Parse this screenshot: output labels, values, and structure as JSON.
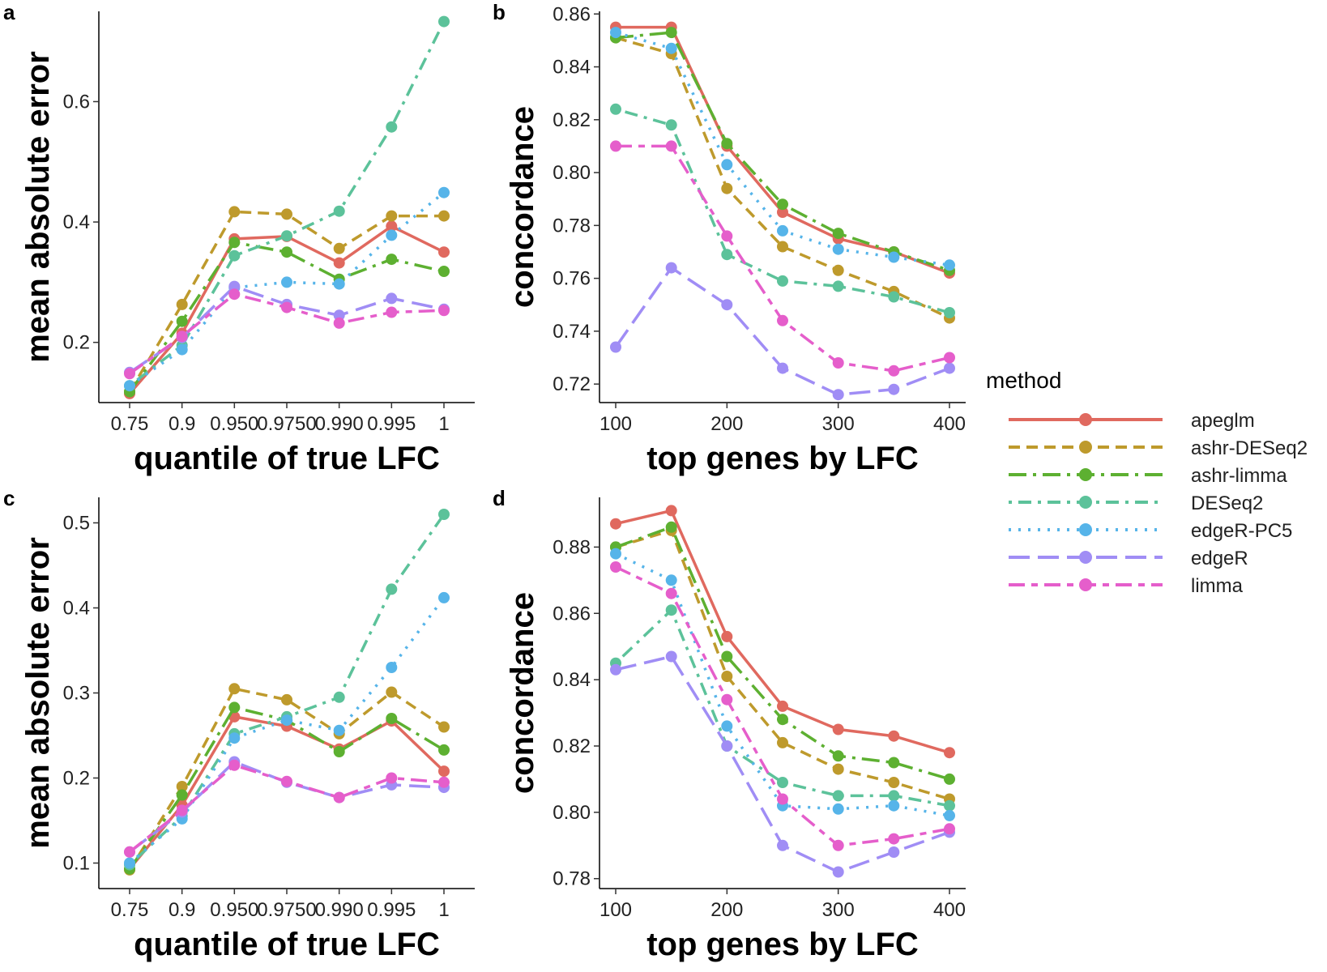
{
  "legend": {
    "title": "method",
    "placement": "right",
    "items": [
      {
        "name": "apeglm",
        "color": "#E0695F",
        "dash": "solid"
      },
      {
        "name": "ashr-DESeq2",
        "color": "#BE9A2C",
        "dash": "dashed"
      },
      {
        "name": "ashr-limma",
        "color": "#5DB031",
        "dash": "longdash-dot"
      },
      {
        "name": "DESeq2",
        "color": "#5CC29A",
        "dash": "dotdash"
      },
      {
        "name": "edgeR-PC5",
        "color": "#56B4E9",
        "dash": "dotted"
      },
      {
        "name": "edgeR",
        "color": "#A08DF5",
        "dash": "longdash"
      },
      {
        "name": "limma",
        "color": "#E55ECB",
        "dash": "twodash"
      }
    ]
  },
  "chart_data": [
    {
      "panel": "a",
      "type": "line",
      "xlabel": "quantile of true LFC",
      "ylabel": "mean absolute error",
      "x_type": "categorical",
      "categories": [
        "0.75",
        "0.9",
        "0.95",
        "0.975",
        "0.99",
        "0.995",
        "1"
      ],
      "x_tick_labels": [
        "0.75",
        "0.9",
        "0.950",
        "0.9750",
        "0.990",
        "0.995",
        "1"
      ],
      "ylim": [
        0.1,
        0.75
      ],
      "yticks": [
        0.2,
        0.4,
        0.6
      ],
      "ytick_labels": [
        "0.2",
        "0.4",
        "0.6"
      ],
      "grid": false,
      "series": [
        {
          "name": "apeglm",
          "values": [
            0.115,
            0.215,
            0.372,
            0.376,
            0.332,
            0.393,
            0.35
          ]
        },
        {
          "name": "ashr-DESeq2",
          "values": [
            0.118,
            0.263,
            0.417,
            0.413,
            0.356,
            0.41,
            0.41
          ]
        },
        {
          "name": "ashr-limma",
          "values": [
            0.118,
            0.235,
            0.366,
            0.35,
            0.305,
            0.338,
            0.318
          ]
        },
        {
          "name": "DESeq2",
          "values": [
            0.128,
            0.195,
            0.344,
            0.377,
            0.418,
            0.558,
            0.733
          ]
        },
        {
          "name": "edgeR-PC5",
          "values": [
            0.128,
            0.188,
            0.291,
            0.3,
            0.297,
            0.378,
            0.449
          ]
        },
        {
          "name": "edgeR",
          "values": [
            0.15,
            0.208,
            0.293,
            0.263,
            0.245,
            0.273,
            0.255
          ]
        },
        {
          "name": "limma",
          "values": [
            0.148,
            0.21,
            0.28,
            0.258,
            0.232,
            0.25,
            0.253
          ]
        }
      ]
    },
    {
      "panel": "b",
      "type": "line",
      "xlabel": "top genes by LFC",
      "ylabel": "concordance",
      "x_type": "numeric",
      "x": [
        100,
        150,
        200,
        250,
        300,
        350,
        400
      ],
      "xlim": [
        100,
        400
      ],
      "xticks": [
        100,
        200,
        300,
        400
      ],
      "xtick_labels": [
        "100",
        "200",
        "300",
        "400"
      ],
      "ylim": [
        0.713,
        0.861
      ],
      "yticks": [
        0.72,
        0.74,
        0.76,
        0.78,
        0.8,
        0.82,
        0.84,
        0.86
      ],
      "ytick_labels": [
        "0.72",
        "0.74",
        "0.76",
        "0.78",
        "0.80",
        "0.82",
        "0.84",
        "0.86"
      ],
      "grid": false,
      "series": [
        {
          "name": "apeglm",
          "values": [
            0.855,
            0.855,
            0.81,
            0.785,
            0.775,
            0.77,
            0.762
          ]
        },
        {
          "name": "ashr-DESeq2",
          "values": [
            0.851,
            0.845,
            0.794,
            0.772,
            0.763,
            0.755,
            0.745
          ]
        },
        {
          "name": "ashr-limma",
          "values": [
            0.851,
            0.853,
            0.811,
            0.788,
            0.777,
            0.77,
            0.763
          ]
        },
        {
          "name": "DESeq2",
          "values": [
            0.824,
            0.818,
            0.769,
            0.759,
            0.757,
            0.753,
            0.747
          ]
        },
        {
          "name": "edgeR-PC5",
          "values": [
            0.853,
            0.847,
            0.803,
            0.778,
            0.771,
            0.768,
            0.765
          ]
        },
        {
          "name": "edgeR",
          "values": [
            0.734,
            0.764,
            0.75,
            0.726,
            0.716,
            0.718,
            0.726
          ]
        },
        {
          "name": "limma",
          "values": [
            0.81,
            0.81,
            0.776,
            0.744,
            0.728,
            0.725,
            0.73
          ]
        }
      ]
    },
    {
      "panel": "c",
      "type": "line",
      "xlabel": "quantile of true LFC",
      "ylabel": "mean absolute error",
      "x_type": "categorical",
      "categories": [
        "0.75",
        "0.9",
        "0.95",
        "0.975",
        "0.99",
        "0.995",
        "1"
      ],
      "x_tick_labels": [
        "0.75",
        "0.9",
        "0.950",
        "0.9750",
        "0.990",
        "0.995",
        "1"
      ],
      "ylim": [
        0.07,
        0.53
      ],
      "yticks": [
        0.1,
        0.2,
        0.3,
        0.4,
        0.5
      ],
      "ytick_labels": [
        "0.1",
        "0.2",
        "0.3",
        "0.4",
        "0.5"
      ],
      "grid": false,
      "series": [
        {
          "name": "apeglm",
          "values": [
            0.093,
            0.168,
            0.272,
            0.261,
            0.234,
            0.267,
            0.208
          ]
        },
        {
          "name": "ashr-DESeq2",
          "values": [
            0.092,
            0.19,
            0.305,
            0.292,
            0.252,
            0.301,
            0.26
          ]
        },
        {
          "name": "ashr-limma",
          "values": [
            0.093,
            0.18,
            0.283,
            0.268,
            0.231,
            0.27,
            0.233
          ]
        },
        {
          "name": "DESeq2",
          "values": [
            0.098,
            0.155,
            0.252,
            0.272,
            0.295,
            0.422,
            0.51
          ]
        },
        {
          "name": "edgeR-PC5",
          "values": [
            0.1,
            0.152,
            0.247,
            0.268,
            0.256,
            0.33,
            0.412
          ]
        },
        {
          "name": "edgeR",
          "values": [
            0.113,
            0.16,
            0.219,
            0.195,
            0.177,
            0.192,
            0.189
          ]
        },
        {
          "name": "limma",
          "values": [
            0.113,
            0.162,
            0.215,
            0.196,
            0.177,
            0.2,
            0.195
          ]
        }
      ]
    },
    {
      "panel": "d",
      "type": "line",
      "xlabel": "top genes by LFC",
      "ylabel": "concordance",
      "x_type": "numeric",
      "x": [
        100,
        150,
        200,
        250,
        300,
        350,
        400
      ],
      "xlim": [
        100,
        400
      ],
      "xticks": [
        100,
        200,
        300,
        400
      ],
      "xtick_labels": [
        "100",
        "200",
        "300",
        "400"
      ],
      "ylim": [
        0.777,
        0.895
      ],
      "yticks": [
        0.78,
        0.8,
        0.82,
        0.84,
        0.86,
        0.88
      ],
      "ytick_labels": [
        "0.78",
        "0.80",
        "0.82",
        "0.84",
        "0.86",
        "0.88"
      ],
      "grid": false,
      "series": [
        {
          "name": "apeglm",
          "values": [
            0.887,
            0.891,
            0.853,
            0.832,
            0.825,
            0.823,
            0.818
          ]
        },
        {
          "name": "ashr-DESeq2",
          "values": [
            0.88,
            0.885,
            0.841,
            0.821,
            0.813,
            0.809,
            0.804
          ]
        },
        {
          "name": "ashr-limma",
          "values": [
            0.88,
            0.886,
            0.847,
            0.828,
            0.817,
            0.815,
            0.81
          ]
        },
        {
          "name": "DESeq2",
          "values": [
            0.845,
            0.861,
            0.82,
            0.809,
            0.805,
            0.805,
            0.802
          ]
        },
        {
          "name": "edgeR-PC5",
          "values": [
            0.878,
            0.87,
            0.826,
            0.802,
            0.801,
            0.802,
            0.799
          ]
        },
        {
          "name": "edgeR",
          "values": [
            0.843,
            0.847,
            0.82,
            0.79,
            0.782,
            0.788,
            0.794
          ]
        },
        {
          "name": "limma",
          "values": [
            0.874,
            0.866,
            0.834,
            0.804,
            0.79,
            0.792,
            0.795
          ]
        }
      ]
    }
  ]
}
